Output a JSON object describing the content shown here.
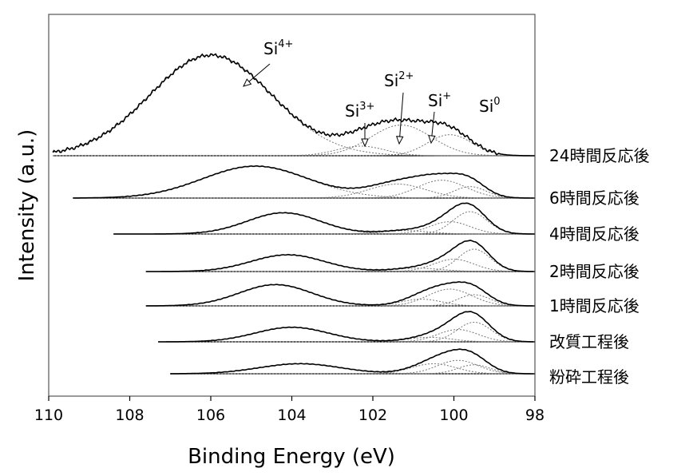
{
  "chart_data": {
    "type": "line",
    "xlabel": "Binding Energy (eV)",
    "ylabel": "Intensity (a.u.)",
    "x_range": [
      110,
      98
    ],
    "x_reversed": true,
    "x_ticks": [
      "110",
      "108",
      "106",
      "104",
      "102",
      "100",
      "98"
    ],
    "x_tick_values": [
      110,
      108,
      106,
      104,
      102,
      100,
      98
    ],
    "grid": false,
    "series": [
      {
        "name": "24時間反応後",
        "x_start": 109.9,
        "peaks": [
          {
            "center": 106.0,
            "height": 1.05,
            "width": 1.5
          },
          {
            "center": 101.3,
            "height": 0.32,
            "width": 0.75
          },
          {
            "center": 100.1,
            "height": 0.22,
            "width": 0.55
          },
          {
            "center": 102.3,
            "height": 0.1,
            "width": 0.6
          }
        ]
      },
      {
        "name": "6時間反応後",
        "x_start": 109.4,
        "peaks": [
          {
            "center": 104.9,
            "height": 0.5,
            "width": 1.3
          },
          {
            "center": 101.4,
            "height": 0.22,
            "width": 0.7
          },
          {
            "center": 100.3,
            "height": 0.28,
            "width": 0.6
          },
          {
            "center": 99.6,
            "height": 0.18,
            "width": 0.4
          }
        ]
      },
      {
        "name": "4時間反応後",
        "x_start": 108.4,
        "peaks": [
          {
            "center": 104.2,
            "height": 0.38,
            "width": 0.9
          },
          {
            "center": 101.2,
            "height": 0.06,
            "width": 0.6
          },
          {
            "center": 100.1,
            "height": 0.22,
            "width": 0.5
          },
          {
            "center": 99.6,
            "height": 0.4,
            "width": 0.42
          }
        ]
      },
      {
        "name": "2時間反応後",
        "x_start": 107.6,
        "peaks": [
          {
            "center": 104.1,
            "height": 0.3,
            "width": 0.9
          },
          {
            "center": 100.9,
            "height": 0.06,
            "width": 0.6
          },
          {
            "center": 100.0,
            "height": 0.22,
            "width": 0.5
          },
          {
            "center": 99.5,
            "height": 0.4,
            "width": 0.4
          }
        ]
      },
      {
        "name": "1時間反応後",
        "x_start": 107.6,
        "peaks": [
          {
            "center": 104.4,
            "height": 0.38,
            "width": 0.9
          },
          {
            "center": 100.8,
            "height": 0.12,
            "width": 0.5
          },
          {
            "center": 100.1,
            "height": 0.3,
            "width": 0.55
          },
          {
            "center": 99.5,
            "height": 0.2,
            "width": 0.4
          }
        ]
      },
      {
        "name": "改質工程後",
        "x_start": 107.3,
        "peaks": [
          {
            "center": 104.0,
            "height": 0.26,
            "width": 0.9
          },
          {
            "center": 100.6,
            "height": 0.08,
            "width": 0.55
          },
          {
            "center": 99.9,
            "height": 0.22,
            "width": 0.5
          },
          {
            "center": 99.5,
            "height": 0.35,
            "width": 0.42
          }
        ]
      },
      {
        "name": "粉砕工程後",
        "x_start": 107.0,
        "peaks": [
          {
            "center": 103.8,
            "height": 0.18,
            "width": 1.0
          },
          {
            "center": 100.5,
            "height": 0.18,
            "width": 0.55
          },
          {
            "center": 99.9,
            "height": 0.24,
            "width": 0.5
          },
          {
            "center": 99.5,
            "height": 0.16,
            "width": 0.4
          }
        ]
      }
    ],
    "annotations": [
      {
        "base": "Si",
        "sup": "4+",
        "target_x": 105.3
      },
      {
        "base": "Si",
        "sup": "3+",
        "target_x": 102.3
      },
      {
        "base": "Si",
        "sup": "2+",
        "target_x": 101.4
      },
      {
        "base": "Si",
        "sup": "+",
        "target_x": 100.6
      },
      {
        "base": "Si",
        "sup": "0",
        "target_x": null
      }
    ]
  }
}
